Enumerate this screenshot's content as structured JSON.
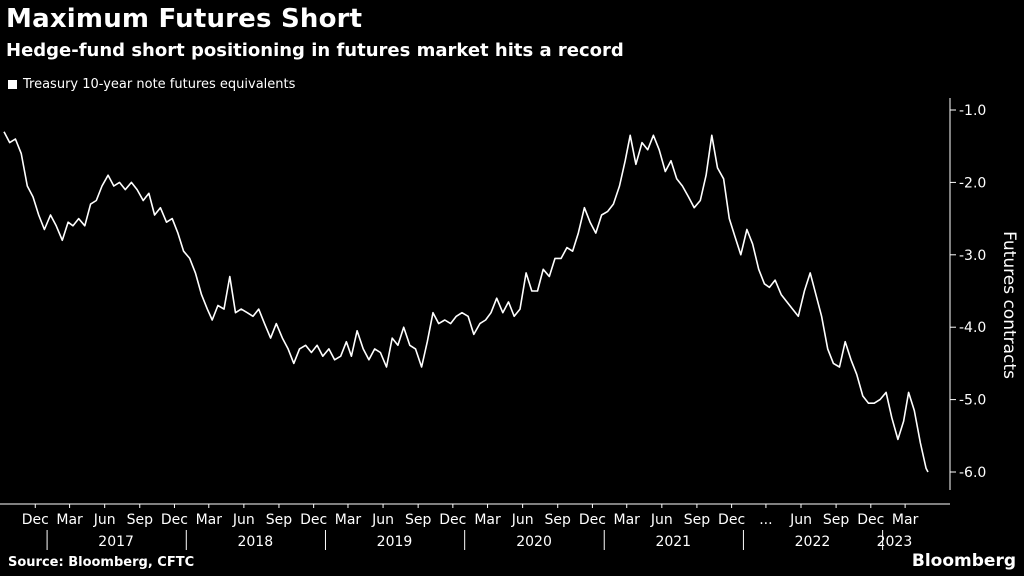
{
  "header": {
    "title": "Maximum Futures Short",
    "subtitle": "Hedge-fund short positioning in futures market hits a record"
  },
  "footer": {
    "source": "Source: Bloomberg, CFTC",
    "brand": "Bloomberg"
  },
  "colors": {
    "background": "#000000",
    "line": "#ffffff",
    "text": "#ffffff"
  },
  "chart_data": {
    "type": "line",
    "title": "Maximum Futures Short",
    "subtitle": "Hedge-fund short positioning in futures market hits a record",
    "ylabel": "Futures contracts",
    "ylim": [
      -6.0,
      -1.0
    ],
    "yticks": [
      -1.0,
      -2.0,
      -3.0,
      -4.0,
      -5.0,
      -6.0
    ],
    "ytick_labels": [
      "-1.0",
      "-2.0",
      "-3.0",
      "-4.0",
      "-5.0",
      "-6.0"
    ],
    "xlim": [
      "2016-09-10",
      "2023-04-30"
    ],
    "y_axis_side": "right",
    "grid": false,
    "legend_position": "top-left",
    "month_ticks": [
      {
        "date": "2016-12-01",
        "label": "Dec"
      },
      {
        "date": "2017-03-01",
        "label": "Mar"
      },
      {
        "date": "2017-06-01",
        "label": "Jun"
      },
      {
        "date": "2017-09-01",
        "label": "Sep"
      },
      {
        "date": "2017-12-01",
        "label": "Dec"
      },
      {
        "date": "2018-03-01",
        "label": "Mar"
      },
      {
        "date": "2018-06-01",
        "label": "Jun"
      },
      {
        "date": "2018-09-01",
        "label": "Sep"
      },
      {
        "date": "2018-12-01",
        "label": "Dec"
      },
      {
        "date": "2019-03-01",
        "label": "Mar"
      },
      {
        "date": "2019-06-01",
        "label": "Jun"
      },
      {
        "date": "2019-09-01",
        "label": "Sep"
      },
      {
        "date": "2019-12-01",
        "label": "Dec"
      },
      {
        "date": "2020-03-01",
        "label": "Mar"
      },
      {
        "date": "2020-06-01",
        "label": "Jun"
      },
      {
        "date": "2020-09-01",
        "label": "Sep"
      },
      {
        "date": "2020-12-01",
        "label": "Dec"
      },
      {
        "date": "2021-03-01",
        "label": "Mar"
      },
      {
        "date": "2021-06-01",
        "label": "Jun"
      },
      {
        "date": "2021-09-01",
        "label": "Sep"
      },
      {
        "date": "2021-12-01",
        "label": "Dec"
      },
      {
        "date": "2022-03-01",
        "label": "..."
      },
      {
        "date": "2022-06-01",
        "label": "Jun"
      },
      {
        "date": "2022-09-01",
        "label": "Sep"
      },
      {
        "date": "2022-12-01",
        "label": "Dec"
      },
      {
        "date": "2023-03-01",
        "label": "Mar"
      }
    ],
    "year_labels": [
      {
        "date": "2017-07-01",
        "label": "2017"
      },
      {
        "date": "2018-07-01",
        "label": "2018"
      },
      {
        "date": "2019-07-01",
        "label": "2019"
      },
      {
        "date": "2020-07-01",
        "label": "2020"
      },
      {
        "date": "2021-07-01",
        "label": "2021"
      },
      {
        "date": "2022-07-01",
        "label": "2022"
      },
      {
        "date": "2023-02-01",
        "label": "2023"
      }
    ],
    "year_separators": [
      "2017-01-01",
      "2018-01-01",
      "2019-01-01",
      "2020-01-01",
      "2021-01-01",
      "2022-01-01",
      "2023-01-01"
    ],
    "series": [
      {
        "name": "Treasury 10-year note futures equivalents",
        "points": [
          [
            "2016-09-10",
            -1.3
          ],
          [
            "2016-09-25",
            -1.45
          ],
          [
            "2016-10-10",
            -1.4
          ],
          [
            "2016-10-25",
            -1.6
          ],
          [
            "2016-11-10",
            -2.05
          ],
          [
            "2016-11-25",
            -2.2
          ],
          [
            "2016-12-10",
            -2.45
          ],
          [
            "2016-12-25",
            -2.65
          ],
          [
            "2017-01-10",
            -2.45
          ],
          [
            "2017-01-25",
            -2.6
          ],
          [
            "2017-02-10",
            -2.8
          ],
          [
            "2017-02-25",
            -2.55
          ],
          [
            "2017-03-10",
            -2.6
          ],
          [
            "2017-03-25",
            -2.5
          ],
          [
            "2017-04-10",
            -2.6
          ],
          [
            "2017-04-25",
            -2.3
          ],
          [
            "2017-05-10",
            -2.25
          ],
          [
            "2017-05-25",
            -2.05
          ],
          [
            "2017-06-10",
            -1.9
          ],
          [
            "2017-06-25",
            -2.05
          ],
          [
            "2017-07-10",
            -2.0
          ],
          [
            "2017-07-25",
            -2.1
          ],
          [
            "2017-08-10",
            -2.0
          ],
          [
            "2017-08-25",
            -2.1
          ],
          [
            "2017-09-10",
            -2.25
          ],
          [
            "2017-09-25",
            -2.15
          ],
          [
            "2017-10-10",
            -2.45
          ],
          [
            "2017-10-25",
            -2.35
          ],
          [
            "2017-11-10",
            -2.55
          ],
          [
            "2017-11-25",
            -2.5
          ],
          [
            "2017-12-10",
            -2.7
          ],
          [
            "2017-12-25",
            -2.95
          ],
          [
            "2018-01-10",
            -3.05
          ],
          [
            "2018-01-25",
            -3.25
          ],
          [
            "2018-02-10",
            -3.55
          ],
          [
            "2018-02-25",
            -3.75
          ],
          [
            "2018-03-10",
            -3.9
          ],
          [
            "2018-03-25",
            -3.7
          ],
          [
            "2018-04-10",
            -3.75
          ],
          [
            "2018-04-25",
            -3.3
          ],
          [
            "2018-05-10",
            -3.8
          ],
          [
            "2018-05-25",
            -3.75
          ],
          [
            "2018-06-10",
            -3.8
          ],
          [
            "2018-06-25",
            -3.85
          ],
          [
            "2018-07-10",
            -3.75
          ],
          [
            "2018-07-25",
            -3.95
          ],
          [
            "2018-08-10",
            -4.15
          ],
          [
            "2018-08-25",
            -3.95
          ],
          [
            "2018-09-10",
            -4.15
          ],
          [
            "2018-09-25",
            -4.3
          ],
          [
            "2018-10-10",
            -4.5
          ],
          [
            "2018-10-25",
            -4.3
          ],
          [
            "2018-11-10",
            -4.25
          ],
          [
            "2018-11-25",
            -4.35
          ],
          [
            "2018-12-10",
            -4.25
          ],
          [
            "2018-12-25",
            -4.4
          ],
          [
            "2019-01-10",
            -4.3
          ],
          [
            "2019-01-25",
            -4.45
          ],
          [
            "2019-02-10",
            -4.4
          ],
          [
            "2019-02-25",
            -4.2
          ],
          [
            "2019-03-10",
            -4.4
          ],
          [
            "2019-03-25",
            -4.05
          ],
          [
            "2019-04-10",
            -4.3
          ],
          [
            "2019-04-25",
            -4.45
          ],
          [
            "2019-05-10",
            -4.3
          ],
          [
            "2019-05-25",
            -4.35
          ],
          [
            "2019-06-10",
            -4.55
          ],
          [
            "2019-06-25",
            -4.15
          ],
          [
            "2019-07-10",
            -4.25
          ],
          [
            "2019-07-25",
            -4.0
          ],
          [
            "2019-08-10",
            -4.25
          ],
          [
            "2019-08-25",
            -4.3
          ],
          [
            "2019-09-10",
            -4.55
          ],
          [
            "2019-09-25",
            -4.2
          ],
          [
            "2019-10-10",
            -3.8
          ],
          [
            "2019-10-25",
            -3.95
          ],
          [
            "2019-11-10",
            -3.9
          ],
          [
            "2019-11-25",
            -3.95
          ],
          [
            "2019-12-10",
            -3.85
          ],
          [
            "2019-12-25",
            -3.8
          ],
          [
            "2020-01-10",
            -3.85
          ],
          [
            "2020-01-25",
            -4.1
          ],
          [
            "2020-02-10",
            -3.95
          ],
          [
            "2020-02-25",
            -3.9
          ],
          [
            "2020-03-10",
            -3.8
          ],
          [
            "2020-03-25",
            -3.6
          ],
          [
            "2020-04-10",
            -3.8
          ],
          [
            "2020-04-25",
            -3.65
          ],
          [
            "2020-05-10",
            -3.85
          ],
          [
            "2020-05-25",
            -3.75
          ],
          [
            "2020-06-10",
            -3.25
          ],
          [
            "2020-06-25",
            -3.5
          ],
          [
            "2020-07-10",
            -3.5
          ],
          [
            "2020-07-25",
            -3.2
          ],
          [
            "2020-08-10",
            -3.3
          ],
          [
            "2020-08-25",
            -3.05
          ],
          [
            "2020-09-10",
            -3.05
          ],
          [
            "2020-09-25",
            -2.9
          ],
          [
            "2020-10-10",
            -2.95
          ],
          [
            "2020-10-25",
            -2.7
          ],
          [
            "2020-11-10",
            -2.35
          ],
          [
            "2020-11-25",
            -2.55
          ],
          [
            "2020-12-10",
            -2.7
          ],
          [
            "2020-12-25",
            -2.45
          ],
          [
            "2021-01-10",
            -2.4
          ],
          [
            "2021-01-25",
            -2.3
          ],
          [
            "2021-02-10",
            -2.05
          ],
          [
            "2021-02-25",
            -1.7
          ],
          [
            "2021-03-10",
            -1.35
          ],
          [
            "2021-03-25",
            -1.75
          ],
          [
            "2021-04-10",
            -1.45
          ],
          [
            "2021-04-25",
            -1.55
          ],
          [
            "2021-05-10",
            -1.35
          ],
          [
            "2021-05-25",
            -1.55
          ],
          [
            "2021-06-10",
            -1.85
          ],
          [
            "2021-06-25",
            -1.7
          ],
          [
            "2021-07-10",
            -1.95
          ],
          [
            "2021-07-25",
            -2.05
          ],
          [
            "2021-08-10",
            -2.2
          ],
          [
            "2021-08-25",
            -2.35
          ],
          [
            "2021-09-10",
            -2.25
          ],
          [
            "2021-09-25",
            -1.9
          ],
          [
            "2021-10-10",
            -1.35
          ],
          [
            "2021-10-25",
            -1.8
          ],
          [
            "2021-11-10",
            -1.95
          ],
          [
            "2021-11-25",
            -2.5
          ],
          [
            "2021-12-10",
            -2.75
          ],
          [
            "2021-12-25",
            -3.0
          ],
          [
            "2022-01-10",
            -2.65
          ],
          [
            "2022-01-25",
            -2.85
          ],
          [
            "2022-02-10",
            -3.2
          ],
          [
            "2022-02-25",
            -3.4
          ],
          [
            "2022-03-10",
            -3.45
          ],
          [
            "2022-03-25",
            -3.35
          ],
          [
            "2022-04-10",
            -3.55
          ],
          [
            "2022-04-25",
            -3.65
          ],
          [
            "2022-05-10",
            -3.75
          ],
          [
            "2022-05-25",
            -3.85
          ],
          [
            "2022-06-10",
            -3.5
          ],
          [
            "2022-06-25",
            -3.25
          ],
          [
            "2022-07-10",
            -3.55
          ],
          [
            "2022-07-25",
            -3.85
          ],
          [
            "2022-08-10",
            -4.3
          ],
          [
            "2022-08-25",
            -4.5
          ],
          [
            "2022-09-10",
            -4.55
          ],
          [
            "2022-09-25",
            -4.2
          ],
          [
            "2022-10-10",
            -4.45
          ],
          [
            "2022-10-25",
            -4.65
          ],
          [
            "2022-11-10",
            -4.95
          ],
          [
            "2022-11-25",
            -5.05
          ],
          [
            "2022-12-10",
            -5.05
          ],
          [
            "2022-12-25",
            -5.0
          ],
          [
            "2023-01-10",
            -4.9
          ],
          [
            "2023-01-25",
            -5.25
          ],
          [
            "2023-02-10",
            -5.55
          ],
          [
            "2023-02-25",
            -5.3
          ],
          [
            "2023-03-10",
            -4.9
          ],
          [
            "2023-03-25",
            -5.15
          ],
          [
            "2023-04-10",
            -5.6
          ],
          [
            "2023-04-25",
            -5.95
          ],
          [
            "2023-04-30",
            -6.0
          ]
        ]
      }
    ]
  }
}
